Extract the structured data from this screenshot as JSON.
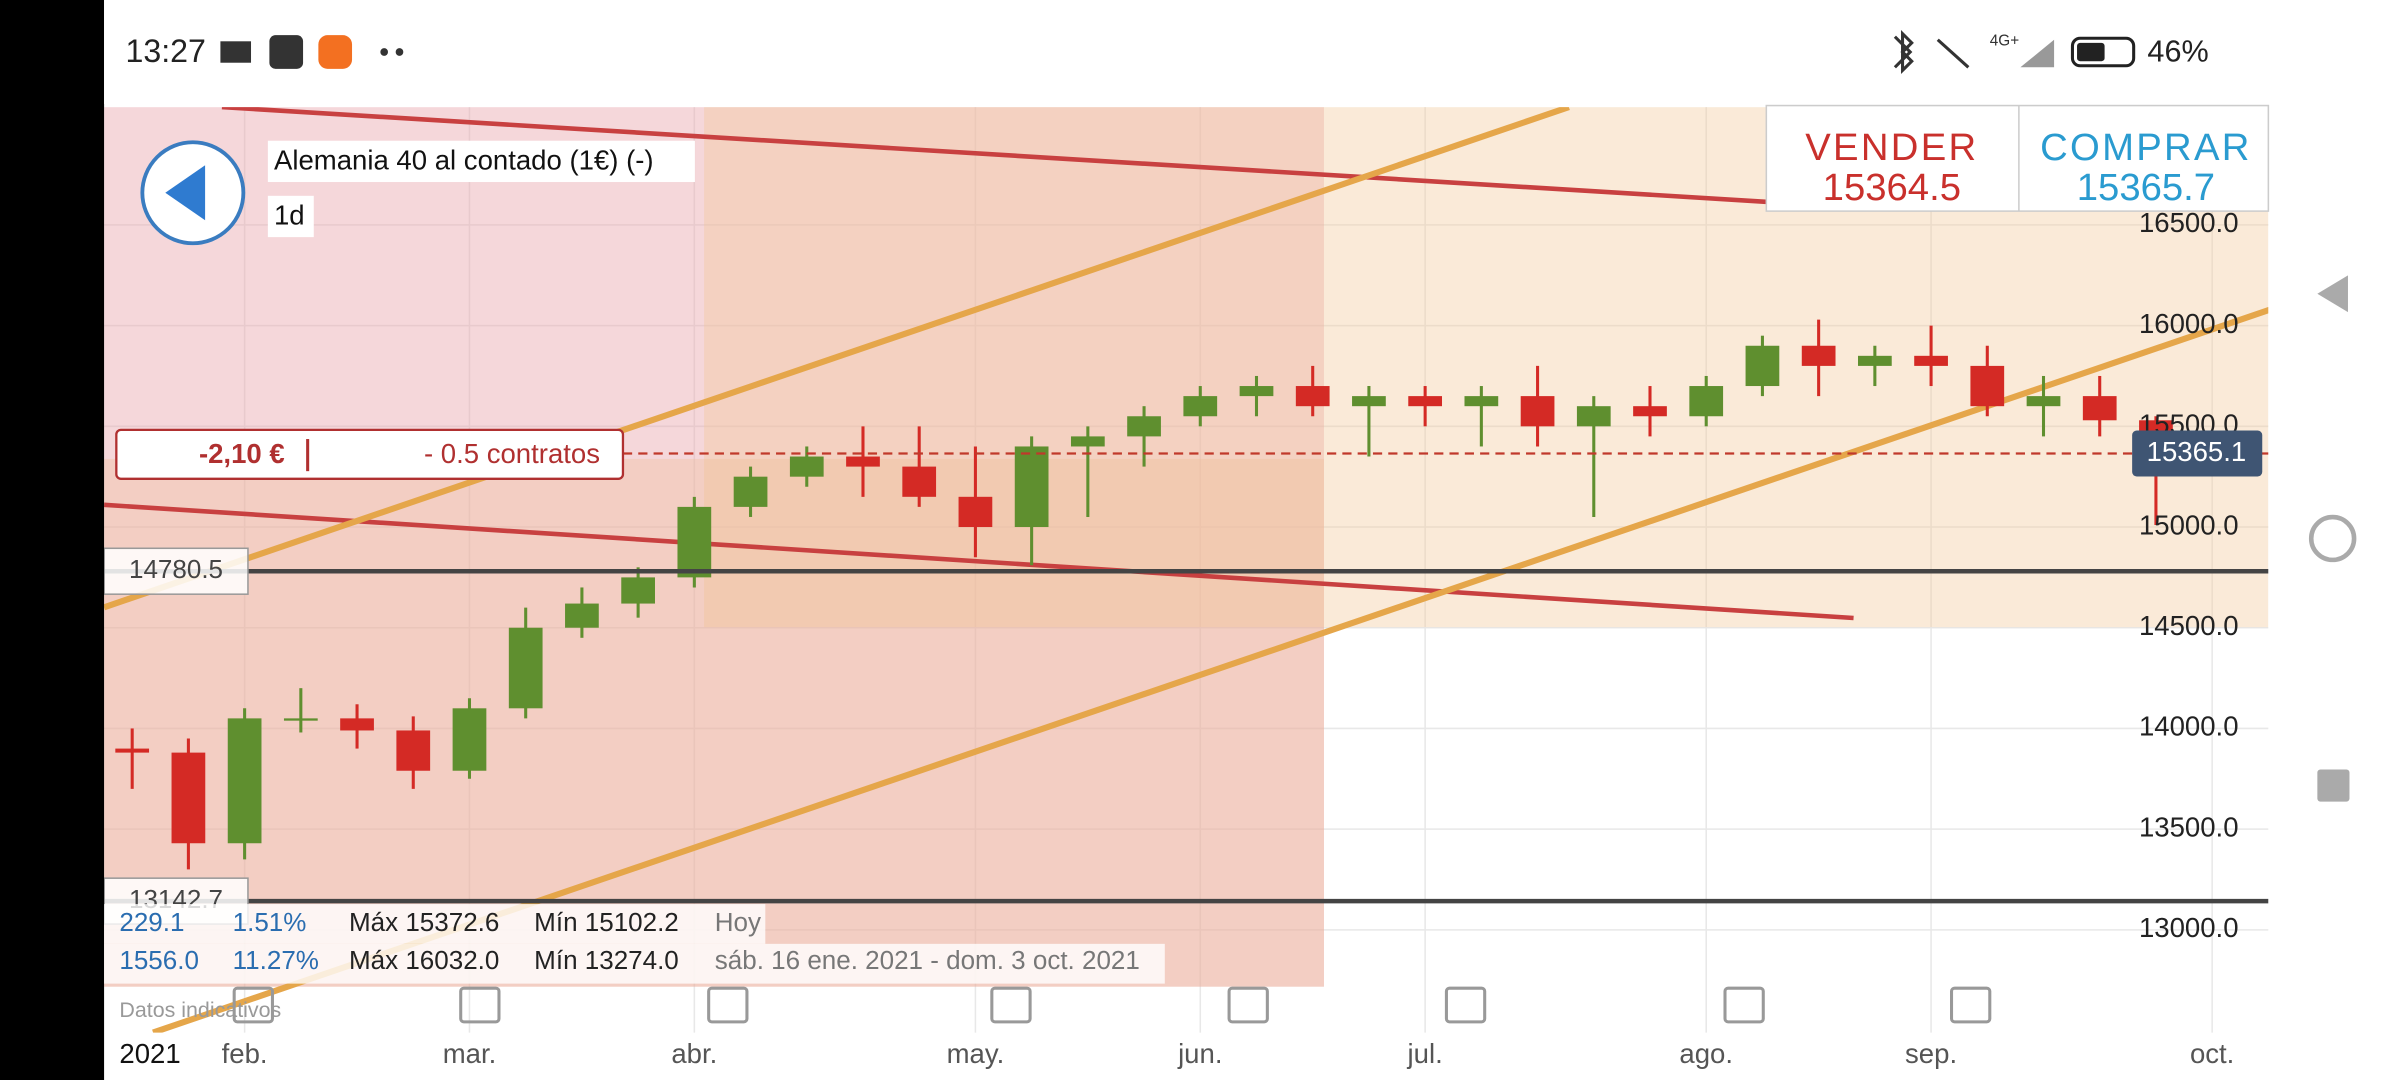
{
  "status_bar": {
    "time": "13:27",
    "network": "4G+",
    "battery": "46%"
  },
  "instrument": {
    "name": "Alemania 40 al contado (1€) (-)",
    "timeframe": "1d"
  },
  "quote": {
    "sell_label": "VENDER",
    "sell_price": "15364.5",
    "buy_label": "COMPRAR",
    "buy_price": "15365.7"
  },
  "position": {
    "pnl": "-2,10 €",
    "size": "- 0.5 contratos"
  },
  "chart_data": {
    "type": "candlestick",
    "categories": [
      null,
      null,
      "feb.",
      null,
      null,
      null,
      "mar.",
      null,
      null,
      null,
      "abr.",
      null,
      null,
      null,
      null,
      "may.",
      null,
      null,
      null,
      "jun.",
      null,
      null,
      null,
      "jul.",
      null,
      null,
      null,
      null,
      "ago.",
      null,
      null,
      null,
      "sep.",
      null,
      null,
      null,
      null,
      "oct."
    ],
    "open": [
      13900,
      13880,
      13430,
      14050,
      14050,
      13990,
      13790,
      14100,
      14500,
      14620,
      14750,
      15100,
      15250,
      15350,
      15300,
      15150,
      15000,
      15400,
      15450,
      15550,
      15650,
      15700,
      15600,
      15650,
      15600,
      15650,
      15500,
      15600,
      15550,
      15700,
      15900,
      15800,
      15850,
      15800,
      15600,
      15650,
      15530,
      null
    ],
    "high": [
      14000,
      13950,
      14100,
      14200,
      14120,
      14060,
      14150,
      14600,
      14700,
      14800,
      15150,
      15300,
      15400,
      15500,
      15500,
      15400,
      15450,
      15500,
      15600,
      15700,
      15750,
      15800,
      15700,
      15700,
      15700,
      15800,
      15650,
      15700,
      15750,
      15950,
      16030,
      15900,
      16000,
      15900,
      15750,
      15750,
      15550,
      null
    ],
    "low": [
      13700,
      13300,
      13350,
      13980,
      13900,
      13700,
      13750,
      14050,
      14450,
      14550,
      14700,
      15050,
      15200,
      15150,
      15100,
      14850,
      14810,
      15050,
      15300,
      15500,
      15550,
      15550,
      15350,
      15500,
      15400,
      15400,
      15050,
      15450,
      15500,
      15650,
      15650,
      15700,
      15700,
      15550,
      15450,
      15450,
      15010,
      null
    ],
    "close": [
      13880,
      13430,
      14050,
      14050,
      13990,
      13790,
      14100,
      14500,
      14620,
      14750,
      15100,
      15250,
      15350,
      15300,
      15150,
      15000,
      15400,
      15450,
      15550,
      15650,
      15700,
      15600,
      15650,
      15600,
      15650,
      15500,
      15600,
      15550,
      15700,
      15900,
      15800,
      15850,
      15800,
      15600,
      15650,
      15530,
      15365,
      null
    ],
    "up_color": "#5f8f2f",
    "down_color": "#d42a25",
    "ylim": [
      12490,
      17085
    ],
    "yticks": [
      {
        "value": 13000,
        "label": "13000.0"
      },
      {
        "value": 13500,
        "label": "13500.0"
      },
      {
        "value": 14000,
        "label": "14000.0"
      },
      {
        "value": 14500,
        "label": "14500.0"
      },
      {
        "value": 15000,
        "label": "15000.0"
      },
      {
        "value": 15500,
        "label": "15500.0"
      },
      {
        "value": 16000,
        "label": "16000.0"
      },
      {
        "value": 16500,
        "label": "16500.0"
      }
    ],
    "grid": true,
    "year_label": "2021",
    "levels": [
      14780.5,
      13142.7
    ],
    "price_line": 15365.1
  },
  "stats": {
    "rows": [
      [
        "229.1",
        "1.51%",
        "Máx 15372.6",
        "Mín 15102.2",
        "Hoy"
      ],
      [
        "1556.0",
        "11.27%",
        "Máx 16032.0",
        "Mín 13274.0",
        "sáb. 16 ene. 2021 - dom. 3 oct. 2021"
      ]
    ]
  },
  "footer": {
    "note": "Datos indicativos"
  }
}
